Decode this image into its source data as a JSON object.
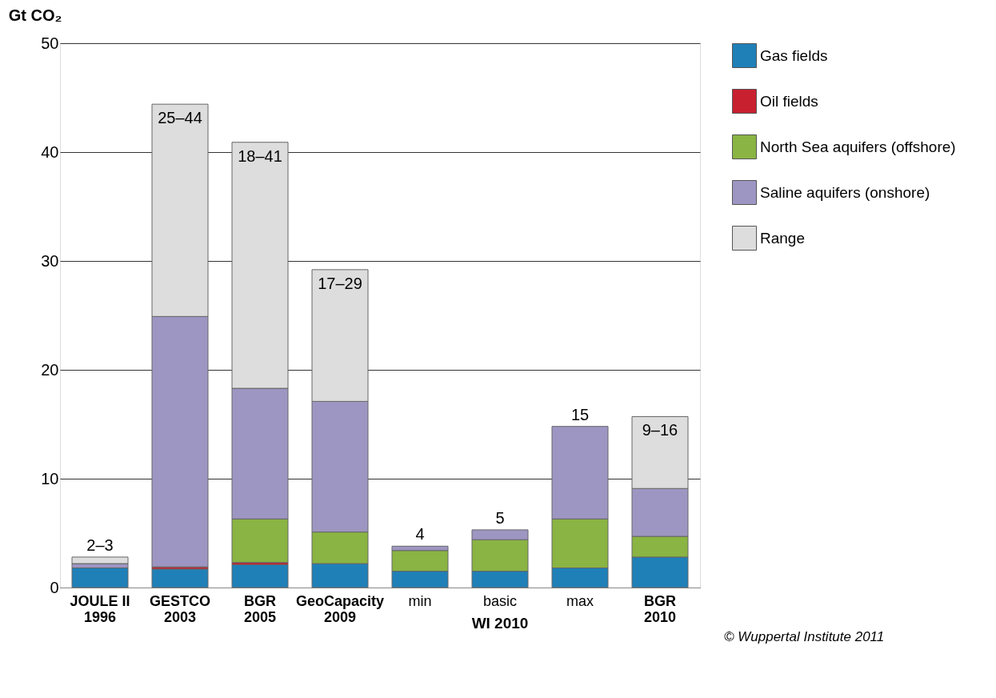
{
  "chart_data": {
    "type": "bar",
    "stacked": true,
    "ylabel": "Gt CO₂",
    "categories": [
      "JOULE II 1996",
      "GESTCO 2003",
      "BGR 2005",
      "GeoCapacity 2009",
      "min",
      "basic",
      "max",
      "BGR 2010"
    ],
    "series": [
      {
        "name": "Gas fields",
        "color": "#1f80b8",
        "values": [
          1.8,
          1.7,
          2.1,
          2.2,
          1.5,
          1.5,
          1.8,
          2.8
        ]
      },
      {
        "name": "Oil fields",
        "color": "#c8202f",
        "values": [
          null,
          0.2,
          0.2,
          null,
          null,
          null,
          null,
          null
        ]
      },
      {
        "name": "North Sea aquifers (offshore)",
        "color": "#8ab443",
        "values": [
          null,
          null,
          4.0,
          2.9,
          1.9,
          2.9,
          4.5,
          1.9
        ]
      },
      {
        "name": "Saline aquifers (onshore)",
        "color": "#9e96c2",
        "values": [
          0.4,
          23.0,
          12.0,
          12.0,
          0.4,
          0.9,
          8.5,
          4.4
        ]
      },
      {
        "name": "Range",
        "color": "#dddddd",
        "values": [
          0.6,
          19.5,
          22.6,
          12.1,
          null,
          null,
          null,
          6.6
        ]
      }
    ],
    "totals": [
      "2–3",
      "25–44",
      "18–41",
      "17–29",
      "4",
      "5",
      "15",
      "9–16"
    ],
    "ylim": [
      0,
      50
    ],
    "yticks": [
      0,
      10,
      20,
      30,
      40,
      50
    ],
    "grid": "y",
    "legend": "right",
    "annotations": [
      "WI 2010",
      "© Wuppertal Institute 2011"
    ]
  }
}
